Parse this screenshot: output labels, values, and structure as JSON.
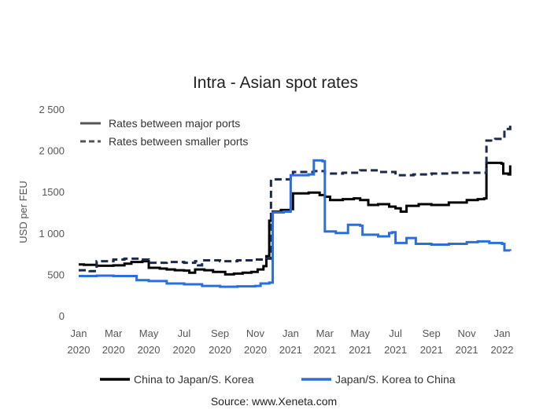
{
  "chart_data": {
    "type": "line",
    "title": "Intra - Asian spot rates",
    "ylabel": "USD per FEU",
    "xlabel": "",
    "ylim": [
      0,
      2500
    ],
    "yticks": [
      {
        "value": 0,
        "label": "0"
      },
      {
        "value": 500,
        "label": "500"
      },
      {
        "value": 1000,
        "label": "1 000"
      },
      {
        "value": 1500,
        "label": "1500"
      },
      {
        "value": 2000,
        "label": "2 000"
      },
      {
        "value": 2500,
        "label": "2 500"
      }
    ],
    "xlim": [
      "2020-01-01",
      "2022-01-20"
    ],
    "xticks": [
      {
        "date": "2020-01-01",
        "month": "Jan",
        "year": "2020"
      },
      {
        "date": "2020-03-01",
        "month": "Mar",
        "year": "2020"
      },
      {
        "date": "2020-05-01",
        "month": "May",
        "year": "2020"
      },
      {
        "date": "2020-07-01",
        "month": "Jul",
        "year": "2020"
      },
      {
        "date": "2020-09-01",
        "month": "Sep",
        "year": "2020"
      },
      {
        "date": "2020-11-01",
        "month": "Nov",
        "year": "2020"
      },
      {
        "date": "2021-01-01",
        "month": "Jan",
        "year": "2021"
      },
      {
        "date": "2021-03-01",
        "month": "Mar",
        "year": "2021"
      },
      {
        "date": "2021-05-01",
        "month": "May",
        "year": "2021"
      },
      {
        "date": "2021-07-01",
        "month": "Jul",
        "year": "2021"
      },
      {
        "date": "2021-09-01",
        "month": "Sep",
        "year": "2021"
      },
      {
        "date": "2021-11-01",
        "month": "Nov",
        "year": "2021"
      },
      {
        "date": "2022-01-01",
        "month": "Jan",
        "year": "2022"
      }
    ],
    "grid": false,
    "style_legend": [
      {
        "label": "Rates between major ports",
        "dash": "solid"
      },
      {
        "label": "Rates between smaller ports",
        "dash": "dashed"
      }
    ],
    "color_legend": [
      {
        "label": "China to Japan/S. Korea",
        "color": "#000000"
      },
      {
        "label": "Japan/S. Korea to China",
        "color": "#2a6fdb"
      }
    ],
    "series": [
      {
        "name": "China to Japan/S. Korea",
        "route": "China to Japan/S. Korea",
        "port_type": "Rates between major ports",
        "color": "#000000",
        "dash": "solid",
        "points": [
          [
            "2020-01-01",
            620
          ],
          [
            "2020-01-10",
            615
          ],
          [
            "2020-02-01",
            605
          ],
          [
            "2020-03-01",
            610
          ],
          [
            "2020-03-20",
            630
          ],
          [
            "2020-04-01",
            650
          ],
          [
            "2020-04-20",
            660
          ],
          [
            "2020-05-01",
            580
          ],
          [
            "2020-05-20",
            570
          ],
          [
            "2020-06-01",
            560
          ],
          [
            "2020-06-15",
            550
          ],
          [
            "2020-07-01",
            545
          ],
          [
            "2020-07-10",
            520
          ],
          [
            "2020-07-20",
            560
          ],
          [
            "2020-08-05",
            550
          ],
          [
            "2020-08-20",
            530
          ],
          [
            "2020-09-10",
            500
          ],
          [
            "2020-09-25",
            510
          ],
          [
            "2020-10-10",
            520
          ],
          [
            "2020-10-25",
            530
          ],
          [
            "2020-11-05",
            560
          ],
          [
            "2020-11-15",
            600
          ],
          [
            "2020-11-20",
            720
          ],
          [
            "2020-11-25",
            1150
          ],
          [
            "2020-12-01",
            1260
          ],
          [
            "2020-12-15",
            1280
          ],
          [
            "2021-01-01",
            1290
          ],
          [
            "2021-01-05",
            1480
          ],
          [
            "2021-02-01",
            1490
          ],
          [
            "2021-02-20",
            1460
          ],
          [
            "2021-03-01",
            1440
          ],
          [
            "2021-03-10",
            1400
          ],
          [
            "2021-04-01",
            1410
          ],
          [
            "2021-04-20",
            1420
          ],
          [
            "2021-05-01",
            1400
          ],
          [
            "2021-05-15",
            1340
          ],
          [
            "2021-06-01",
            1350
          ],
          [
            "2021-06-20",
            1320
          ],
          [
            "2021-07-01",
            1300
          ],
          [
            "2021-07-10",
            1260
          ],
          [
            "2021-07-20",
            1330
          ],
          [
            "2021-08-10",
            1350
          ],
          [
            "2021-09-01",
            1340
          ],
          [
            "2021-10-01",
            1370
          ],
          [
            "2021-11-01",
            1400
          ],
          [
            "2021-11-20",
            1410
          ],
          [
            "2021-12-01",
            1420
          ],
          [
            "2021-12-05",
            1850
          ],
          [
            "2021-12-31",
            1840
          ],
          [
            "2022-01-03",
            1720
          ],
          [
            "2022-01-12",
            1710
          ],
          [
            "2022-01-15",
            1820
          ]
        ]
      },
      {
        "name": "China to Japan/S. Korea",
        "route": "China to Japan/S. Korea",
        "port_type": "Rates between smaller ports",
        "color": "#1c2a4a",
        "dash": "dashed",
        "points": [
          [
            "2020-01-01",
            550
          ],
          [
            "2020-01-20",
            540
          ],
          [
            "2020-02-01",
            660
          ],
          [
            "2020-03-01",
            680
          ],
          [
            "2020-03-20",
            690
          ],
          [
            "2020-04-15",
            680
          ],
          [
            "2020-05-01",
            640
          ],
          [
            "2020-06-01",
            650
          ],
          [
            "2020-07-01",
            640
          ],
          [
            "2020-07-20",
            660
          ],
          [
            "2020-07-25",
            610
          ],
          [
            "2020-08-01",
            670
          ],
          [
            "2020-09-01",
            660
          ],
          [
            "2020-10-01",
            670
          ],
          [
            "2020-11-01",
            680
          ],
          [
            "2020-11-20",
            690
          ],
          [
            "2020-11-28",
            1650
          ],
          [
            "2021-01-01",
            1660
          ],
          [
            "2021-01-05",
            1740
          ],
          [
            "2021-02-10",
            1750
          ],
          [
            "2021-03-01",
            1720
          ],
          [
            "2021-04-01",
            1730
          ],
          [
            "2021-05-01",
            1760
          ],
          [
            "2021-06-01",
            1740
          ],
          [
            "2021-07-01",
            1700
          ],
          [
            "2021-08-01",
            1710
          ],
          [
            "2021-09-01",
            1720
          ],
          [
            "2021-10-01",
            1730
          ],
          [
            "2021-11-01",
            1730
          ],
          [
            "2021-12-01",
            1730
          ],
          [
            "2021-12-05",
            2120
          ],
          [
            "2021-12-20",
            2140
          ],
          [
            "2022-01-01",
            2150
          ],
          [
            "2022-01-05",
            2260
          ],
          [
            "2022-01-15",
            2300
          ]
        ]
      },
      {
        "name": "Japan/S. Korea to China",
        "route": "Japan/S. Korea to China",
        "port_type": "Rates between major ports",
        "color": "#2a6fdb",
        "dash": "solid",
        "points": [
          [
            "2020-01-01",
            480
          ],
          [
            "2020-02-01",
            485
          ],
          [
            "2020-03-01",
            480
          ],
          [
            "2020-04-01",
            480
          ],
          [
            "2020-04-10",
            430
          ],
          [
            "2020-05-01",
            420
          ],
          [
            "2020-06-01",
            390
          ],
          [
            "2020-07-01",
            380
          ],
          [
            "2020-08-01",
            360
          ],
          [
            "2020-09-01",
            350
          ],
          [
            "2020-10-01",
            355
          ],
          [
            "2020-11-01",
            360
          ],
          [
            "2020-11-10",
            390
          ],
          [
            "2020-11-25",
            400
          ],
          [
            "2020-12-01",
            1250
          ],
          [
            "2020-12-20",
            1260
          ],
          [
            "2021-01-01",
            1700
          ],
          [
            "2021-02-01",
            1710
          ],
          [
            "2021-02-10",
            1880
          ],
          [
            "2021-02-25",
            1870
          ],
          [
            "2021-03-01",
            1020
          ],
          [
            "2021-03-20",
            1000
          ],
          [
            "2021-04-10",
            1100
          ],
          [
            "2021-05-01",
            1090
          ],
          [
            "2021-05-05",
            980
          ],
          [
            "2021-06-01",
            960
          ],
          [
            "2021-06-20",
            1000
          ],
          [
            "2021-06-25",
            1010
          ],
          [
            "2021-07-01",
            880
          ],
          [
            "2021-07-20",
            940
          ],
          [
            "2021-08-05",
            870
          ],
          [
            "2021-09-01",
            860
          ],
          [
            "2021-10-01",
            870
          ],
          [
            "2021-11-01",
            890
          ],
          [
            "2021-11-20",
            900
          ],
          [
            "2021-12-10",
            880
          ],
          [
            "2022-01-01",
            870
          ],
          [
            "2022-01-05",
            790
          ],
          [
            "2022-01-15",
            785
          ]
        ]
      }
    ],
    "source": "Source: www.Xeneta.com"
  }
}
